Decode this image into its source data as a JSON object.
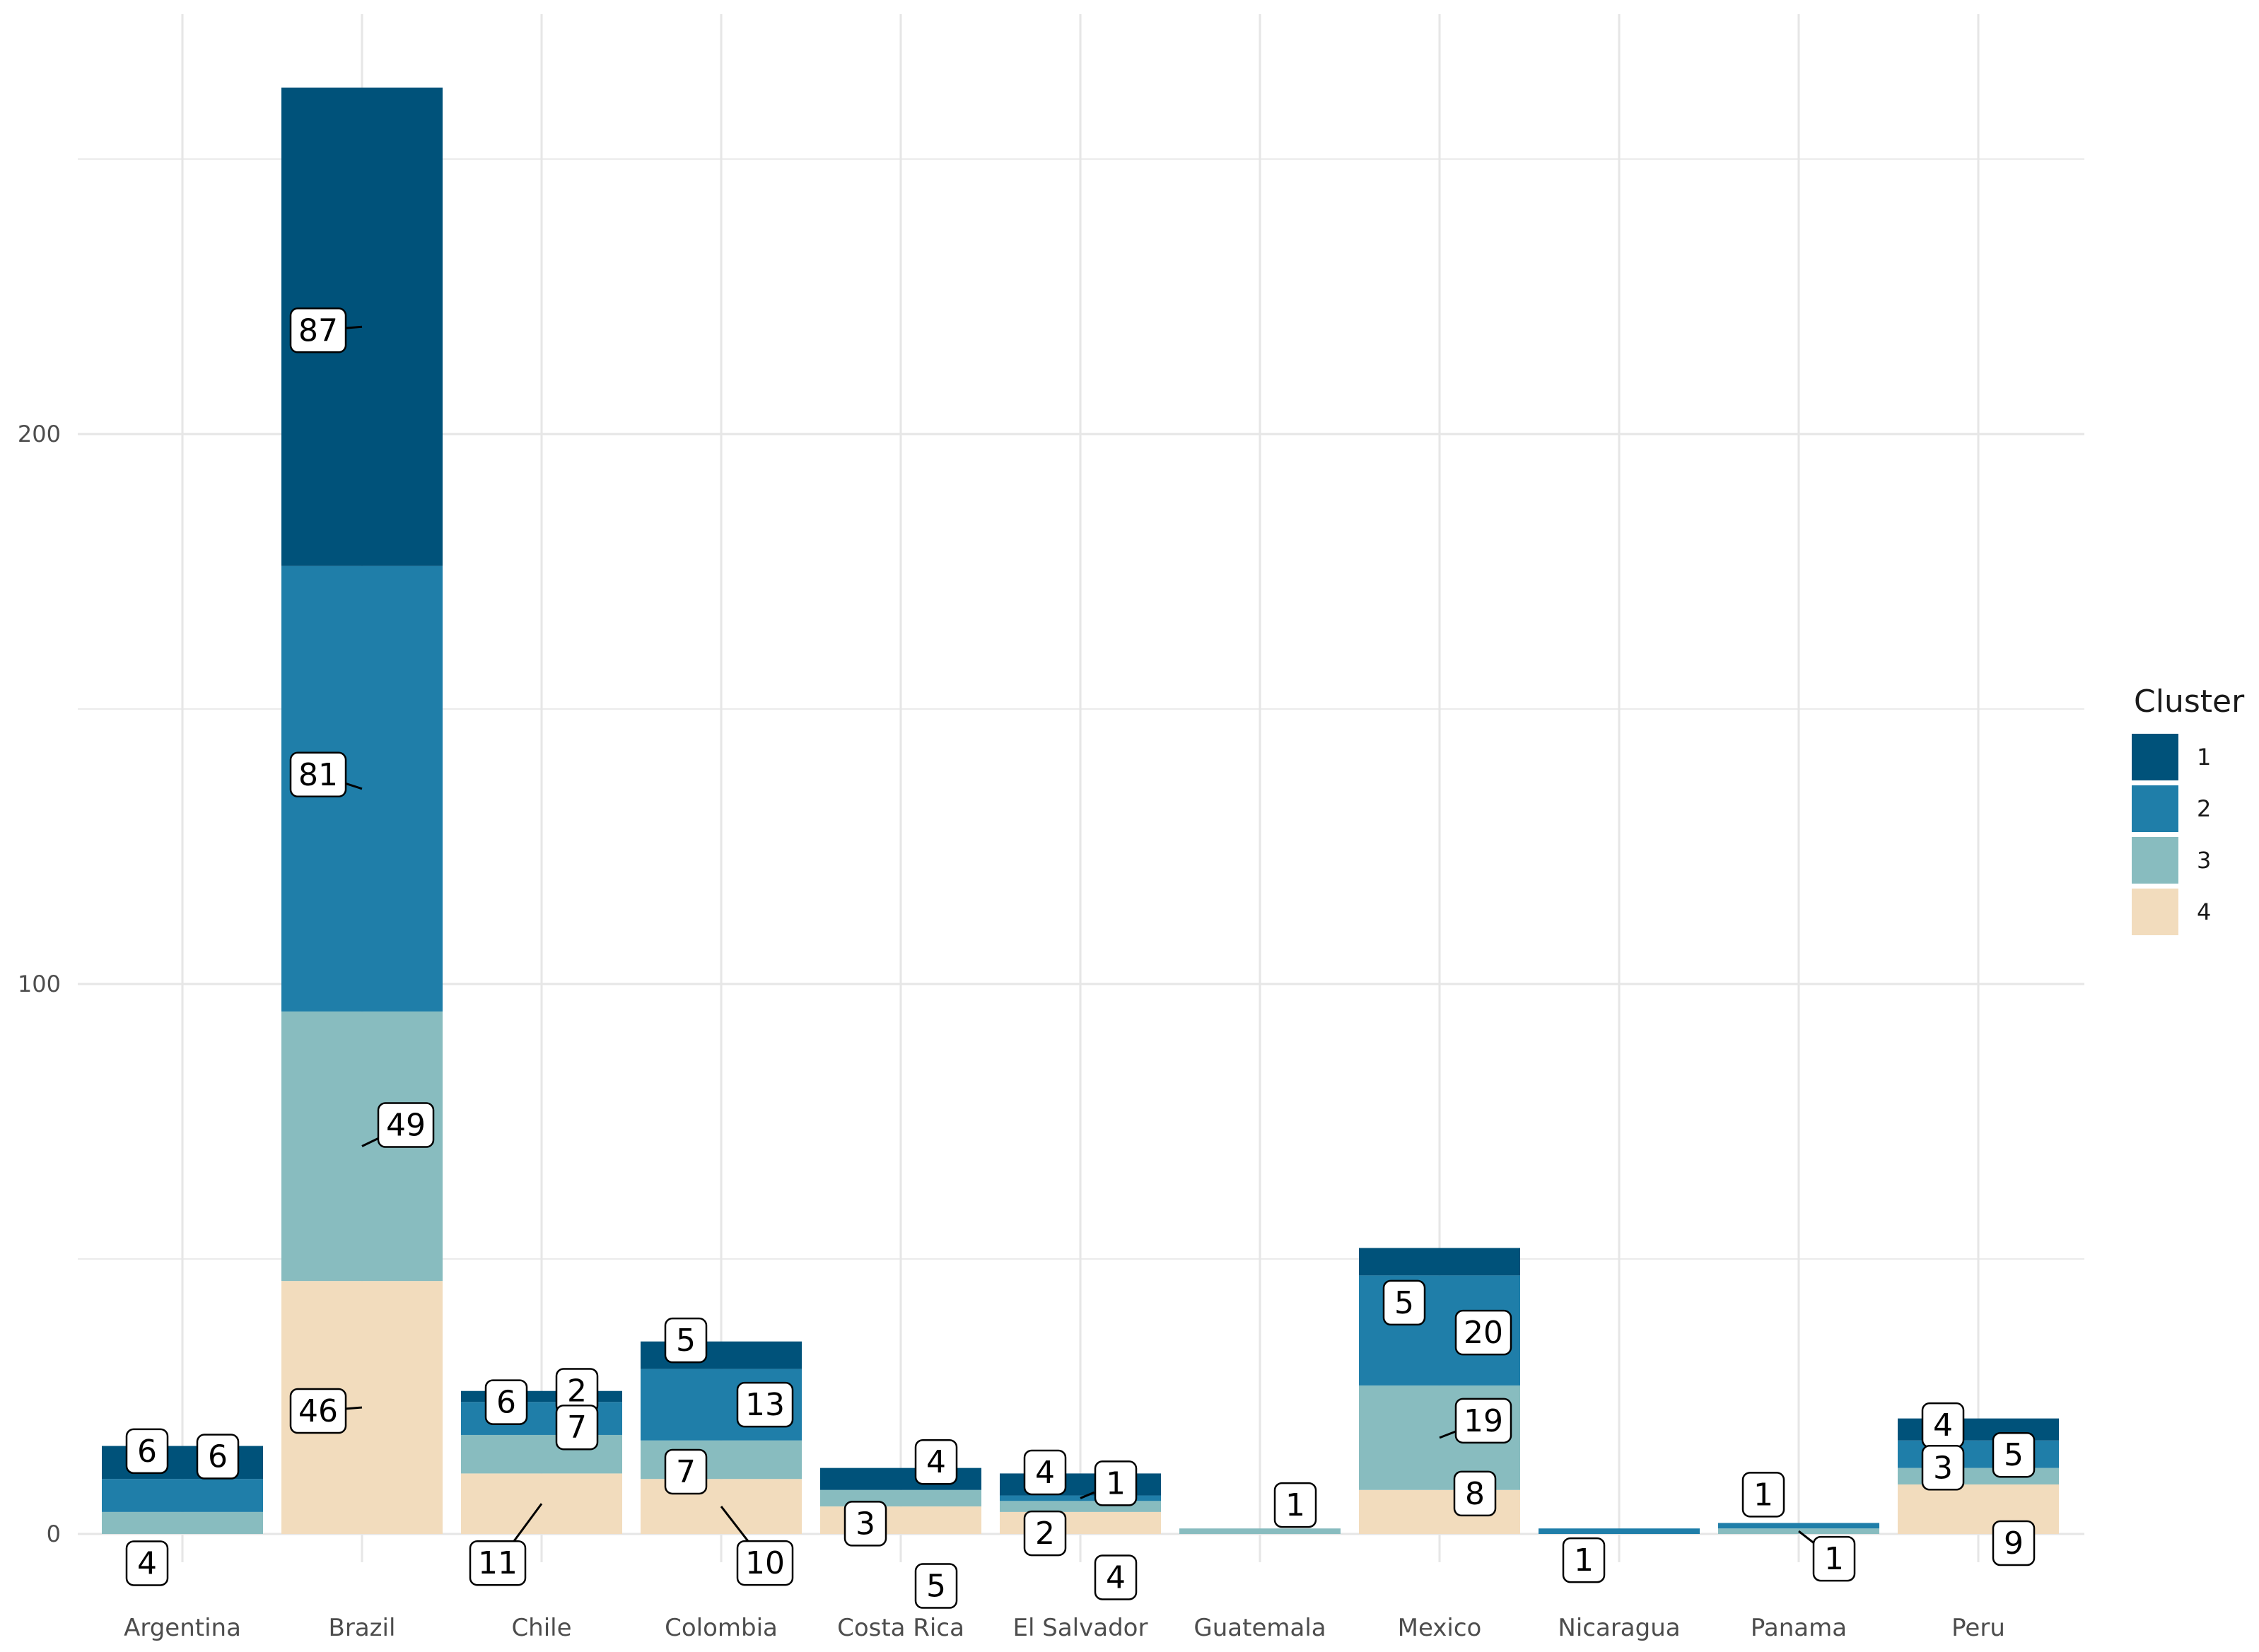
{
  "chart_data": {
    "type": "bar",
    "stacked": true,
    "categories": [
      "Argentina",
      "Brazil",
      "Chile",
      "Colombia",
      "Costa Rica",
      "El Salvador",
      "Guatemala",
      "Mexico",
      "Nicaragua",
      "Panama",
      "Peru"
    ],
    "series": [
      {
        "name": "1",
        "color": "#00527a",
        "values": [
          6,
          87,
          2,
          5,
          4,
          4,
          0,
          5,
          0,
          0,
          4
        ]
      },
      {
        "name": "2",
        "color": "#1f7ea9",
        "values": [
          6,
          81,
          6,
          13,
          0,
          1,
          0,
          20,
          1,
          1,
          5
        ]
      },
      {
        "name": "3",
        "color": "#88bcbf",
        "values": [
          4,
          49,
          7,
          7,
          3,
          2,
          1,
          19,
          0,
          1,
          3
        ]
      },
      {
        "name": "4",
        "color": "#f2dcbd",
        "values": [
          0,
          46,
          11,
          10,
          5,
          4,
          0,
          8,
          0,
          0,
          9
        ]
      }
    ],
    "title": "",
    "xlabel": "",
    "ylabel": "",
    "yticks": [
      0,
      100,
      200
    ],
    "ylim": [
      -10,
      275
    ],
    "grid": true,
    "legend": {
      "title": "Cluster",
      "position": "right"
    },
    "labels": [
      {
        "category": "Argentina",
        "series": "1",
        "text": "6"
      },
      {
        "category": "Argentina",
        "series": "2",
        "text": "6"
      },
      {
        "category": "Argentina",
        "series": "3",
        "text": "4"
      },
      {
        "category": "Brazil",
        "series": "1",
        "text": "87"
      },
      {
        "category": "Brazil",
        "series": "2",
        "text": "81"
      },
      {
        "category": "Brazil",
        "series": "3",
        "text": "49"
      },
      {
        "category": "Brazil",
        "series": "4",
        "text": "46"
      },
      {
        "category": "Chile",
        "series": "1",
        "text": "2"
      },
      {
        "category": "Chile",
        "series": "2",
        "text": "6"
      },
      {
        "category": "Chile",
        "series": "3",
        "text": "7"
      },
      {
        "category": "Chile",
        "series": "4",
        "text": "11"
      },
      {
        "category": "Colombia",
        "series": "1",
        "text": "5"
      },
      {
        "category": "Colombia",
        "series": "2",
        "text": "13"
      },
      {
        "category": "Colombia",
        "series": "3",
        "text": "7"
      },
      {
        "category": "Colombia",
        "series": "4",
        "text": "10"
      },
      {
        "category": "Costa Rica",
        "series": "1",
        "text": "4"
      },
      {
        "category": "Costa Rica",
        "series": "3",
        "text": "3"
      },
      {
        "category": "Costa Rica",
        "series": "4",
        "text": "5"
      },
      {
        "category": "El Salvador",
        "series": "1",
        "text": "4"
      },
      {
        "category": "El Salvador",
        "series": "2",
        "text": "1"
      },
      {
        "category": "El Salvador",
        "series": "3",
        "text": "2"
      },
      {
        "category": "El Salvador",
        "series": "4",
        "text": "4"
      },
      {
        "category": "Guatemala",
        "series": "3",
        "text": "1"
      },
      {
        "category": "Mexico",
        "series": "1",
        "text": "5"
      },
      {
        "category": "Mexico",
        "series": "2",
        "text": "20"
      },
      {
        "category": "Mexico",
        "series": "3",
        "text": "19"
      },
      {
        "category": "Mexico",
        "series": "4",
        "text": "8"
      },
      {
        "category": "Nicaragua",
        "series": "2",
        "text": "1"
      },
      {
        "category": "Panama",
        "series": "2",
        "text": "1"
      },
      {
        "category": "Panama",
        "series": "3",
        "text": "1"
      },
      {
        "category": "Peru",
        "series": "1",
        "text": "4"
      },
      {
        "category": "Peru",
        "series": "2",
        "text": "5"
      },
      {
        "category": "Peru",
        "series": "3",
        "text": "3"
      },
      {
        "category": "Peru",
        "series": "4",
        "text": "9"
      }
    ]
  }
}
